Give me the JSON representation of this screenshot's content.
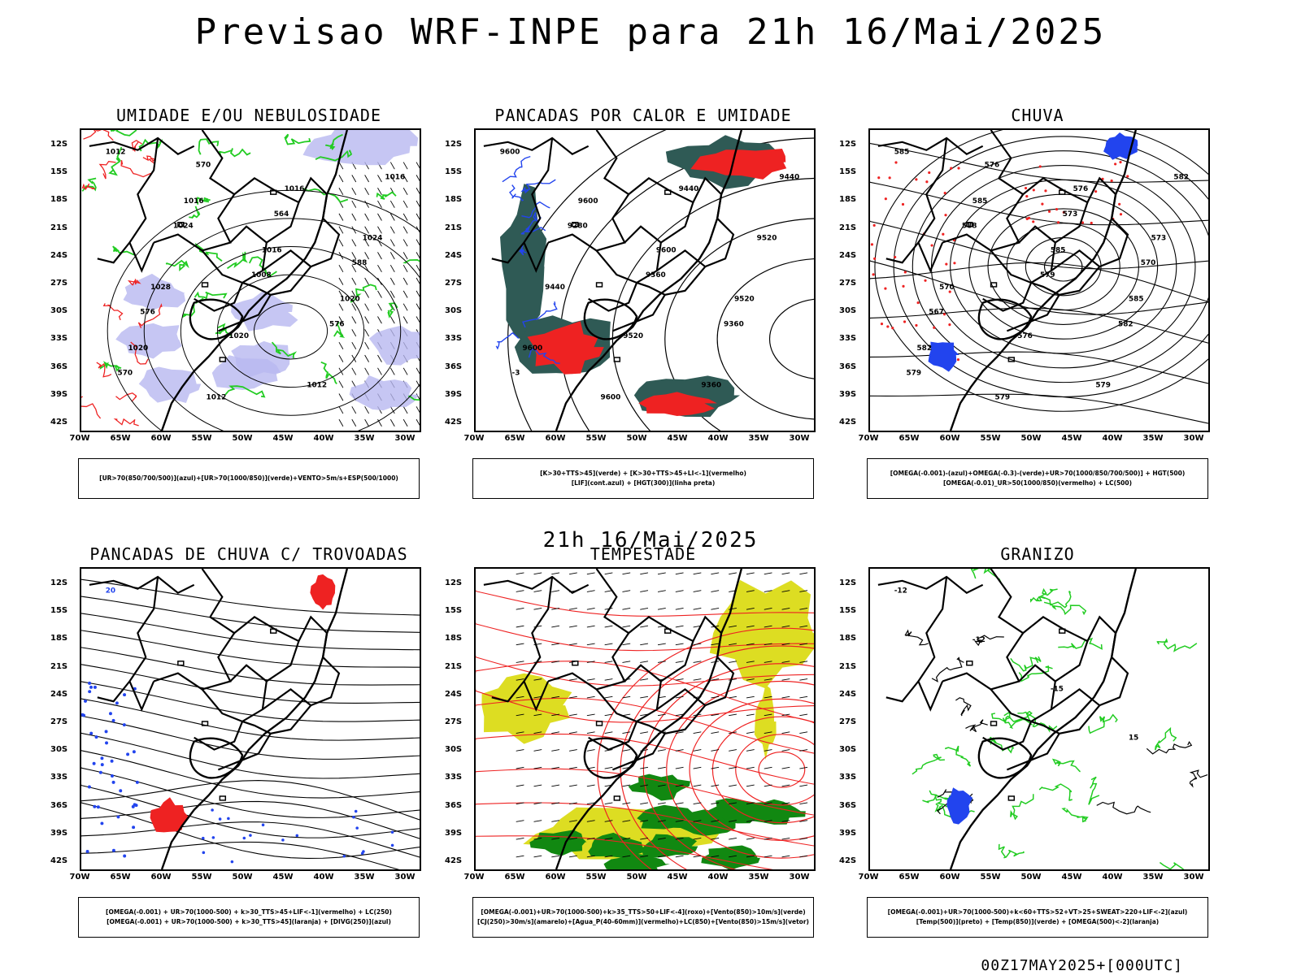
{
  "title": "Previsao WRF-INPE  para 21h 16/Mai/2025",
  "subtitle": "21h 16/Mai/2025",
  "footer": "00Z17MAY2025+[000UTC]",
  "axes": {
    "lat_labels": [
      "12S",
      "15S",
      "18S",
      "21S",
      "24S",
      "27S",
      "30S",
      "33S",
      "36S",
      "39S",
      "42S"
    ],
    "lon_labels": [
      "70W",
      "65W",
      "60W",
      "55W",
      "50W",
      "45W",
      "40W",
      "35W",
      "30W"
    ]
  },
  "colors": {
    "green": "#22cc22",
    "red": "#ee2222",
    "blue": "#2244ee",
    "lavender": "#b8b8f0",
    "teal": "#2f5a55",
    "yellow": "#dddd22",
    "darkgreen": "#118811"
  },
  "panels": [
    {
      "title": "UMIDADE E/OU NEBULOSIDADE",
      "legend": [
        "[UR>70(850/700/500)](azul)+[UR>70(1000/850)](verde)+VENTO>5m/s+ESP(500/1000)"
      ],
      "contour_labels": [
        "1012",
        "1016",
        "1016",
        "1020",
        "1020",
        "1012",
        "1016",
        "1024",
        "1028",
        "1020",
        "1012",
        "1016",
        "1024",
        "1008",
        "576",
        "570",
        "570",
        "564",
        "588",
        "576"
      ]
    },
    {
      "title": "PANCADAS POR CALOR E UMIDADE",
      "legend": [
        "[K>30+TTS>45](verde) + [K>30+TTS>45+LI<-1](vermelho)",
        "[LIF](cont.azul) + [HGT(300)](linha preta)"
      ],
      "contour_labels": [
        "9600",
        "9600",
        "9600",
        "9520",
        "9600",
        "9600",
        "9440",
        "9520",
        "9440",
        "9520",
        "9360",
        "9440",
        "9280",
        "9360",
        "9360",
        "-3"
      ]
    },
    {
      "title": "CHUVA",
      "legend": [
        "[OMEGA(-0.001)-(azul)+OMEGA(-0.3)-(verde)+UR>70(1000/850/700/500)] + HGT(500)",
        "[OMEGA(-0.01)_UR>50(1000/850)(vermelho) + LC(500)"
      ],
      "contour_labels": [
        "585",
        "585",
        "585",
        "585",
        "582",
        "579",
        "576",
        "573",
        "570",
        "576",
        "579",
        "582",
        "588",
        "579",
        "582",
        "579",
        "576",
        "573",
        "570",
        "567"
      ]
    },
    {
      "title": "PANCADAS DE CHUVA C/ TROVOADAS",
      "legend": [
        "[OMEGA(-0.001) + UR>70(1000-500) + k>30_TTS>45+LIF<-1](vermelho) + LC(250)",
        "[OMEGA(-0.001) + UR>70(1000-500) + k>30_TTS>45](laranja) + [DIVG(250)](azul)"
      ],
      "contour_labels": [
        "20"
      ]
    },
    {
      "title": "TEMPESTADE",
      "legend": [
        "[OMEGA(-0.001)+UR>70(1000-500)+k>35_TTS>50+LIF<-4](roxo)+[Vento(850)>10m/s](verde)",
        "[CJ(250)>30m/s](amarelo)+[Agua_P(40-60mm)](vermelho)+LC(850)+[Vento(850)>15m/s](vetor)"
      ],
      "contour_labels": []
    },
    {
      "title": "GRANIZO",
      "legend": [
        "[OMEGA(-0.001)+UR>70(1000-500)+k<60+TTS>52+VT>25+SWEAT>220+LIF<-2](azul)",
        "[Temp(500)](preto) + [Temp(850)](verde) + [OMEGA(500)<-2](laranja)"
      ],
      "contour_labels": [
        "-12",
        "-12",
        "-15",
        "15"
      ]
    }
  ]
}
